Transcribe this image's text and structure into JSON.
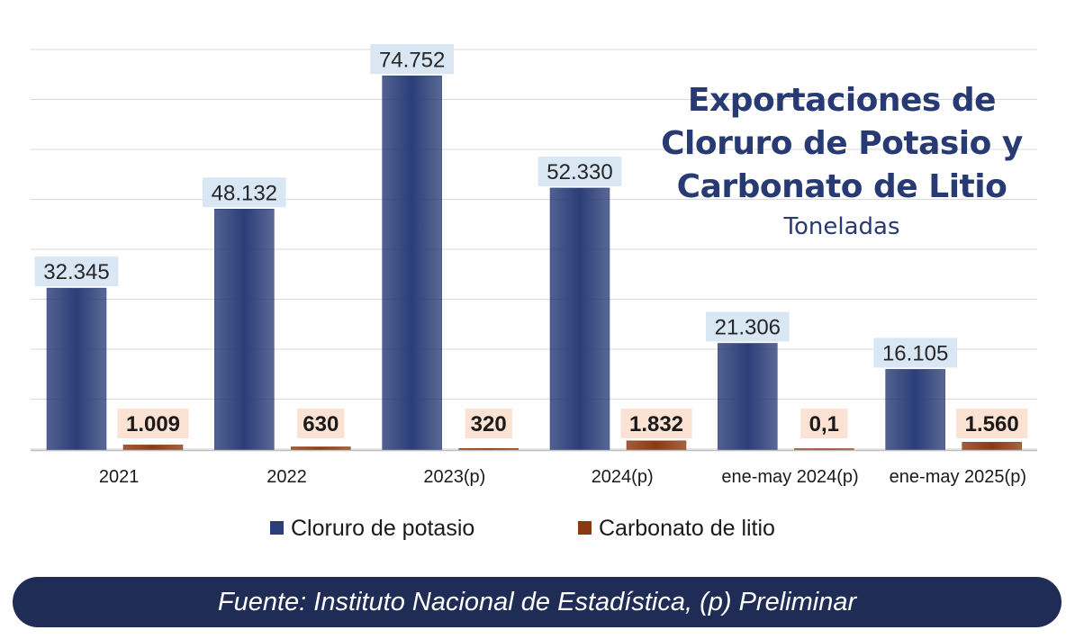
{
  "chart_data": {
    "type": "bar",
    "title": [
      "Exportaciones de",
      "Cloruro de Potasio y",
      "Carbonato de Litio"
    ],
    "subtitle": "Toneladas",
    "categories": [
      "2021",
      "2022",
      "2023(p)",
      "2024(p)",
      "ene-may 2024(p)",
      "ene-may 2025(p)"
    ],
    "series": [
      {
        "name": "Cloruro de potasio",
        "color": "#2b3e78",
        "values": [
          32345,
          48132,
          74752,
          52330,
          21306,
          16105
        ],
        "labels": [
          "32.345",
          "48.132",
          "74.752",
          "52.330",
          "21.306",
          "16.105"
        ]
      },
      {
        "name": "Carbonato de litio",
        "color": "#8b3a10",
        "values": [
          1009,
          630,
          320,
          1832,
          0.1,
          1560
        ],
        "labels": [
          "1.009",
          "630",
          "320",
          "1.832",
          "0,1",
          "1.560"
        ]
      }
    ],
    "legend_position": "bottom",
    "grid": true
  },
  "footer": {
    "source_text": "Fuente: Instituto Nacional de Estadística, (p) Preliminar"
  }
}
